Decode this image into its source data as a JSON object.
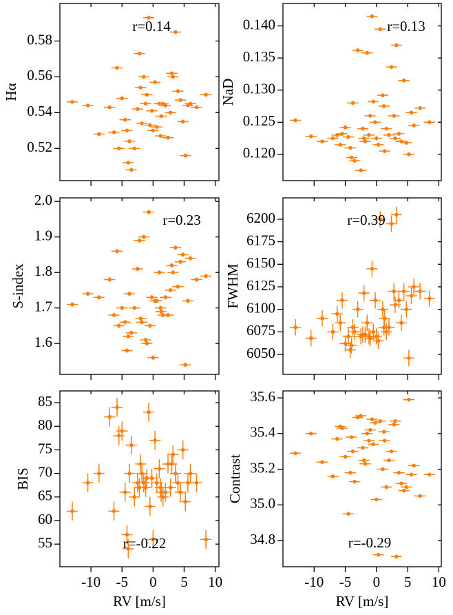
{
  "chart_data": [
    {
      "type": "scatter",
      "ylabel": "Hα",
      "annotation": "r=0.14",
      "color": "#ff7f0e",
      "x": [
        -13,
        -10.5,
        -8.7,
        -7,
        -6.3,
        -5.8,
        -5,
        -4.5,
        -4.2,
        -3.8,
        -3.5,
        -3,
        -2.5,
        -2.2,
        -2,
        -1.5,
        -1.2,
        -1,
        -0.7,
        -0.5,
        -0.2,
        0,
        0.3,
        0.6,
        1,
        1.3,
        1.6,
        2,
        2.4,
        2.8,
        3.2,
        3.6,
        4,
        4.4,
        4.8,
        5.2,
        5.6,
        6,
        7,
        8.5,
        -5.5,
        -4,
        -1.8,
        1.2,
        3
      ],
      "values": [
        0.546,
        0.544,
        0.528,
        0.543,
        0.529,
        0.565,
        0.548,
        0.536,
        0.53,
        0.524,
        0.508,
        0.52,
        0.542,
        0.573,
        0.554,
        0.56,
        0.545,
        0.55,
        0.593,
        0.533,
        0.541,
        0.53,
        0.557,
        0.532,
        0.545,
        0.538,
        0.545,
        0.544,
        0.526,
        0.54,
        0.56,
        0.585,
        0.552,
        0.547,
        0.535,
        0.516,
        0.544,
        0.545,
        0.543,
        0.55,
        0.52,
        0.512,
        0.534,
        0.527,
        0.562
      ],
      "xerr": 0.9,
      "yerr": 0.0006,
      "xlim": [
        -15,
        10.6
      ],
      "xticks": [
        -10,
        -5,
        0,
        5,
        10
      ],
      "ylim": [
        0.502,
        0.601
      ],
      "yticks": [
        0.52,
        0.54,
        0.56,
        0.58
      ]
    },
    {
      "type": "scatter",
      "ylabel": "NaD",
      "annotation": "r=0.13",
      "color": "#ff7f0e",
      "x": [
        -13,
        -10.5,
        -8.7,
        -7,
        -6.3,
        -5.8,
        -5,
        -4.5,
        -4.2,
        -3.8,
        -3.5,
        -3,
        -2.5,
        -2.2,
        -2,
        -1.5,
        -1.2,
        -1,
        -0.7,
        -0.5,
        -0.2,
        0,
        0.3,
        0.6,
        1,
        1.3,
        1.6,
        2,
        2.4,
        2.8,
        3.2,
        3.6,
        4,
        4.4,
        4.8,
        5.2,
        5.6,
        6,
        7,
        8.5,
        -5.5,
        -4,
        -1.8,
        1.2,
        3
      ],
      "values": [
        0.1253,
        0.1228,
        0.122,
        0.1225,
        0.123,
        0.1215,
        0.1242,
        0.1227,
        0.121,
        0.128,
        0.119,
        0.1362,
        0.1175,
        0.124,
        0.1225,
        0.1358,
        0.123,
        0.126,
        0.1415,
        0.1282,
        0.125,
        0.1225,
        0.1215,
        0.1395,
        0.1292,
        0.1205,
        0.124,
        0.123,
        0.1336,
        0.126,
        0.137,
        0.1232,
        0.122,
        0.1315,
        0.1218,
        0.12,
        0.1265,
        0.1245,
        0.1272,
        0.125,
        0.1232,
        0.1195,
        0.122,
        0.1275,
        0.1225
      ],
      "xerr": 0.9,
      "yerr": 0.0003,
      "xlim": [
        -15,
        10.4
      ],
      "xticks": [
        -10,
        -5,
        0,
        5,
        10
      ],
      "ylim": [
        0.1159,
        0.1435
      ],
      "yticks": [
        {
          "value": 0.12,
          "label": "0.120"
        },
        0.125,
        {
          "value": 0.13,
          "label": "0.130"
        },
        0.135,
        {
          "value": 0.14,
          "label": "0.140"
        }
      ]
    },
    {
      "type": "scatter",
      "ylabel": "S-index",
      "annotation": "r=0.23",
      "color": "#ff7f0e",
      "x": [
        -13,
        -10.5,
        -8.7,
        -7,
        -6.3,
        -5.8,
        -5,
        -4.5,
        -4.2,
        -3.8,
        -3.5,
        -3,
        -2.5,
        -2.2,
        -2,
        -1.5,
        -1.2,
        -1,
        -0.7,
        -0.5,
        -0.2,
        0,
        0.3,
        0.6,
        1,
        1.3,
        1.6,
        2,
        2.4,
        2.8,
        3.2,
        3.6,
        4,
        4.4,
        4.8,
        5.2,
        5.6,
        6,
        7,
        8.5,
        -5.5,
        -4,
        -1.8,
        1.2,
        3
      ],
      "values": [
        1.71,
        1.74,
        1.73,
        1.78,
        1.68,
        1.86,
        1.7,
        1.66,
        1.58,
        1.74,
        1.63,
        1.7,
        1.81,
        1.89,
        1.67,
        1.9,
        1.61,
        1.6,
        1.97,
        1.65,
        1.73,
        1.56,
        1.72,
        1.72,
        1.8,
        1.69,
        1.68,
        1.73,
        1.68,
        1.75,
        1.8,
        1.87,
        1.76,
        1.83,
        1.85,
        1.54,
        1.72,
        1.84,
        1.78,
        1.79,
        1.65,
        1.62,
        1.66,
        1.7,
        1.82
      ],
      "xerr": 0.9,
      "yerr": 0.006,
      "xlim": [
        -15,
        10.6
      ],
      "xticks": [
        -10,
        -5,
        0,
        5,
        10
      ],
      "ylim": [
        1.513,
        2.01
      ],
      "yticks": [
        1.6,
        1.7,
        1.8,
        1.9,
        {
          "value": 2,
          "label": "2.0"
        }
      ]
    },
    {
      "type": "scatter",
      "ylabel": "FWHM",
      "annotation": "r=0.39",
      "color": "#ff7f0e",
      "x": [
        -13,
        -10.5,
        -8.7,
        -7,
        -6.3,
        -5.8,
        -5,
        -4.5,
        -4.2,
        -3.8,
        -3.5,
        -3,
        -2.5,
        -2.2,
        -2,
        -1.5,
        -1.2,
        -1,
        -0.7,
        -0.5,
        -0.2,
        0,
        0.3,
        0.6,
        1,
        1.3,
        1.6,
        2,
        2.4,
        2.8,
        3.2,
        3.6,
        4,
        4.4,
        4.8,
        5.2,
        5.6,
        6,
        7,
        8.5,
        -5.5,
        -4,
        -1.8,
        1.2,
        3
      ],
      "values": [
        6080,
        6068,
        6090,
        6075,
        6095,
        6085,
        6062,
        6070,
        6055,
        6080,
        6075,
        6100,
        6070,
        6072,
        6118,
        6085,
        6070,
        6068,
        6145,
        6075,
        6110,
        6070,
        6065,
        6200,
        6100,
        6090,
        6075,
        6080,
        6195,
        6120,
        6205,
        6110,
        6085,
        6120,
        6100,
        6046,
        6115,
        6125,
        6120,
        6112,
        6110,
        6060,
        6072,
        6080,
        6105
      ],
      "xerr": 0.9,
      "yerr": 9,
      "xlim": [
        -15,
        10.4
      ],
      "xticks": [
        -10,
        -5,
        0,
        5,
        10
      ],
      "ylim": [
        6027.8,
        6223.7
      ],
      "yticks": [
        6050,
        6075,
        6100,
        6125,
        6150,
        6175,
        6200
      ]
    },
    {
      "type": "scatter",
      "ylabel": "BIS",
      "xlabel": "RV [m/s]",
      "annotation": "r=-0.22",
      "color": "#ff7f0e",
      "x": [
        -13,
        -10.5,
        -8.7,
        -7,
        -6.3,
        -5.8,
        -5,
        -4.5,
        -4.2,
        -3.8,
        -3.5,
        -3,
        -2.5,
        -2.2,
        -2,
        -1.5,
        -1.2,
        -1,
        -0.7,
        -0.5,
        -0.2,
        0,
        0.3,
        0.6,
        1,
        1.3,
        1.6,
        2,
        2.4,
        2.8,
        3.2,
        3.6,
        4,
        4.4,
        4.8,
        5.2,
        5.6,
        6,
        7,
        8.5,
        -5.5,
        -4,
        -1.8,
        1.2,
        3
      ],
      "values": [
        62,
        68,
        70,
        82,
        62,
        84,
        79,
        66,
        57,
        70,
        76,
        65,
        68,
        67,
        72,
        68,
        67,
        69,
        83,
        63,
        69,
        56,
        77,
        68,
        71,
        66,
        65,
        66,
        72,
        67,
        74,
        70,
        68,
        66,
        75,
        64,
        68,
        70,
        68,
        56,
        78,
        54,
        70,
        67,
        72
      ],
      "xerr": 0.9,
      "yerr": 2,
      "xlim": [
        -15,
        10.6
      ],
      "xticks": [
        -10,
        -5,
        0,
        5,
        10
      ],
      "ylim": [
        50.2,
        87.5
      ],
      "yticks": [
        55,
        60,
        65,
        70,
        75,
        80,
        85
      ]
    },
    {
      "type": "scatter",
      "ylabel": "Contrast",
      "xlabel": "RV [m/s]",
      "annotation": "r=-0.29",
      "color": "#ff7f0e",
      "x": [
        -13,
        -10.5,
        -8.7,
        -7,
        -6.3,
        -5.8,
        -5,
        -4.5,
        -4.2,
        -3.8,
        -3.5,
        -3,
        -2.5,
        -2.2,
        -2,
        -1.5,
        -1.2,
        -1,
        -0.7,
        -0.5,
        -0.2,
        0,
        0.3,
        0.6,
        1,
        1.3,
        1.6,
        2,
        2.4,
        2.8,
        3.2,
        3.6,
        4,
        4.4,
        4.8,
        5.2,
        5.6,
        6,
        7,
        8.5,
        -5.5,
        -4,
        -1.8,
        1.2,
        3
      ],
      "values": [
        35.29,
        35.4,
        35.24,
        35.16,
        35.37,
        35.44,
        35.27,
        34.95,
        35.18,
        35.3,
        35.13,
        35.49,
        35.5,
        35.32,
        35.25,
        35.4,
        35.36,
        35.42,
        35.48,
        35.34,
        35.46,
        35.03,
        34.72,
        35.47,
        35.2,
        35.36,
        35.1,
        35.25,
        35.3,
        35.45,
        34.71,
        35.18,
        35.12,
        35.08,
        35.1,
        35.59,
        35.17,
        35.22,
        35.05,
        35.17,
        35.43,
        35.38,
        35.23,
        35.41,
        35.47
      ],
      "xerr": 0.9,
      "yerr": 0.004,
      "xlim": [
        -15,
        10.4
      ],
      "xticks": [
        -10,
        -5,
        0,
        5,
        10
      ],
      "ylim": [
        34.653,
        35.639
      ],
      "yticks": [
        34.8,
        {
          "value": 35,
          "label": "35.0"
        },
        35.2,
        35.4,
        35.6
      ]
    }
  ]
}
